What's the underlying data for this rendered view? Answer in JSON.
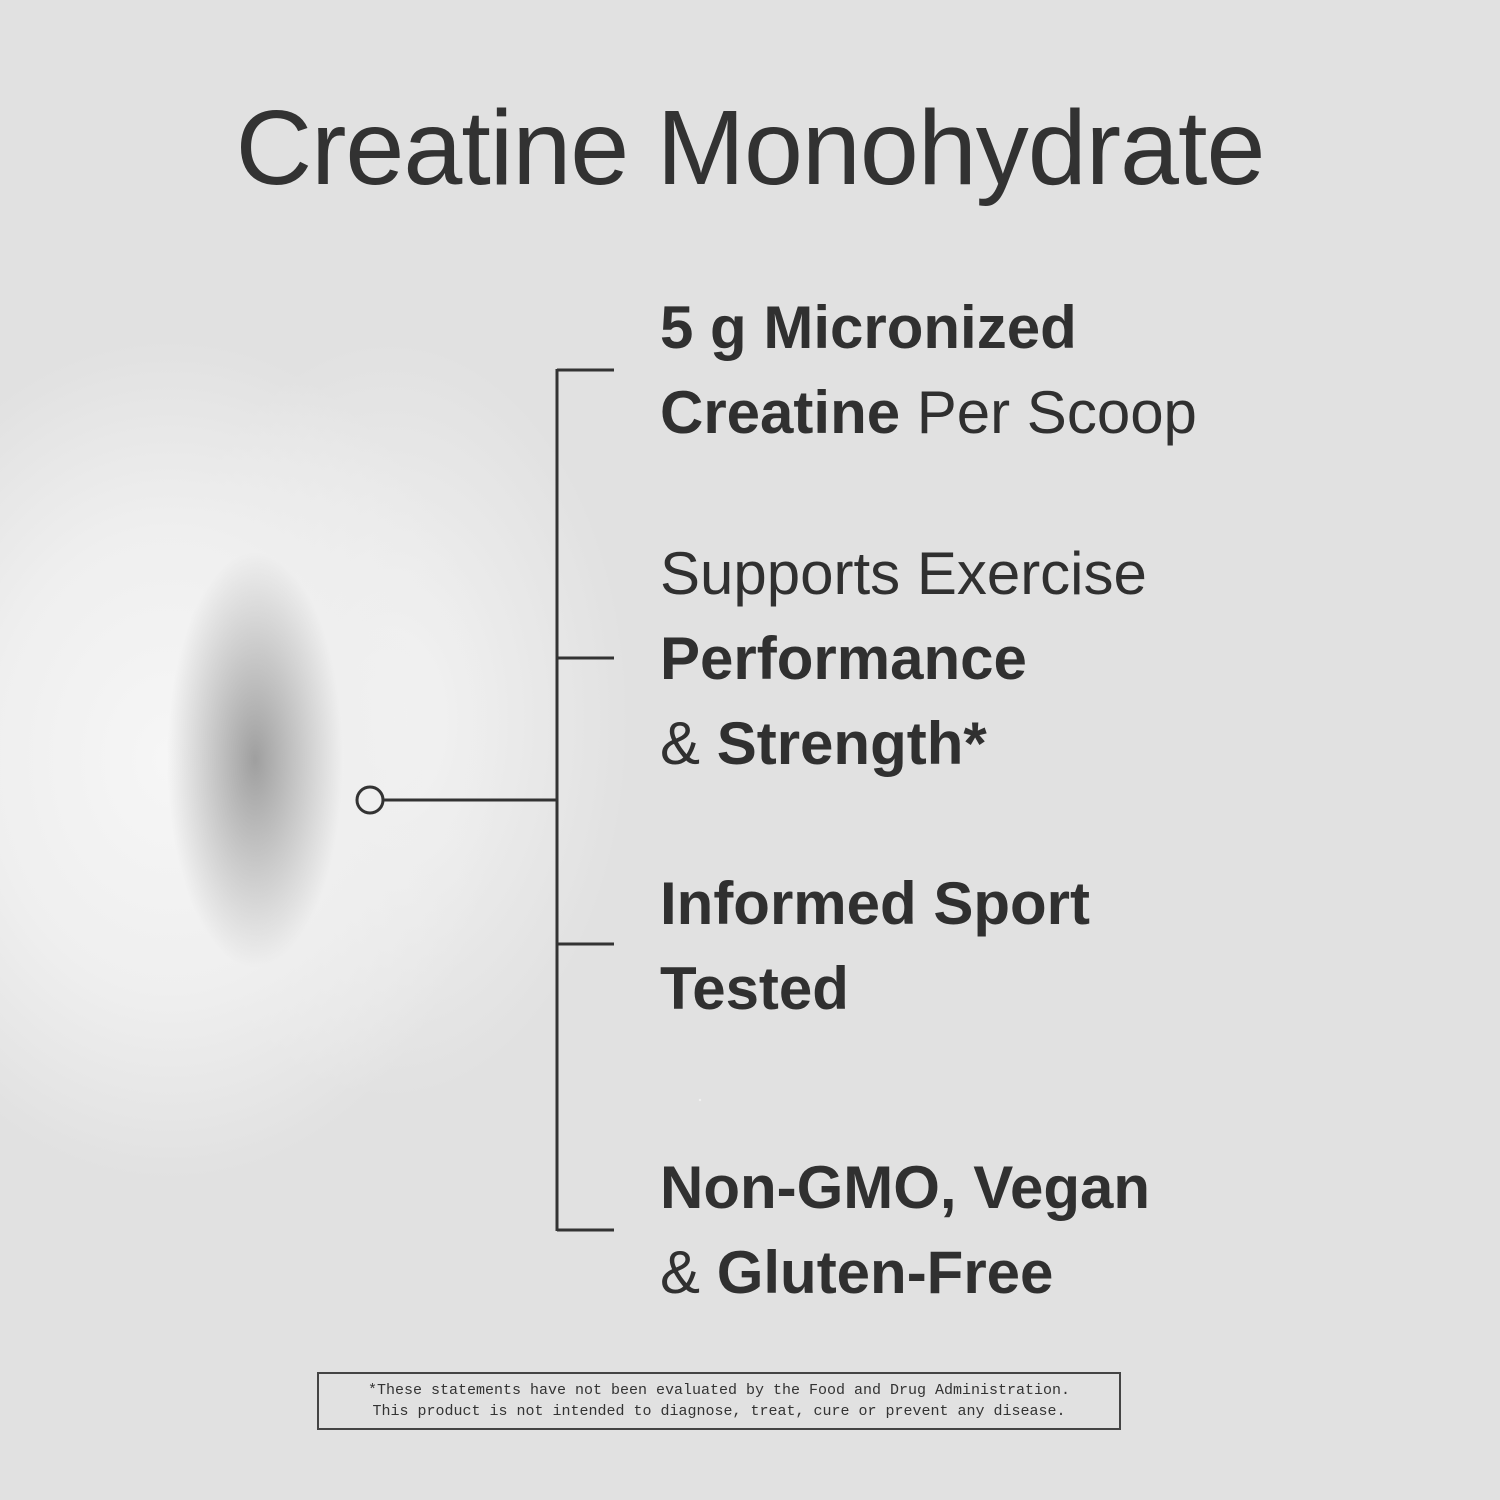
{
  "title": "Creatine Monohydrate",
  "features": [
    {
      "lines": [
        [
          {
            "text": "5 g Micronized",
            "bold": true
          }
        ],
        [
          {
            "text": "Creatine",
            "bold": true
          },
          {
            "text": " Per Scoop",
            "bold": false
          }
        ]
      ]
    },
    {
      "lines": [
        [
          {
            "text": "Supports Exercise",
            "bold": false
          }
        ],
        [
          {
            "text": "Performance",
            "bold": true
          }
        ],
        [
          {
            "text": "& ",
            "bold": false
          },
          {
            "text": "Strength*",
            "bold": true
          }
        ]
      ]
    },
    {
      "lines": [
        [
          {
            "text": "Informed Sport",
            "bold": true
          }
        ],
        [
          {
            "text": "Tested",
            "bold": true
          }
        ]
      ]
    },
    {
      "lines": [
        [
          {
            "text": "Non-GMO, Vegan",
            "bold": true
          }
        ],
        [
          {
            "text": "& ",
            "bold": false
          },
          {
            "text": "Gluten-Free",
            "bold": true
          }
        ]
      ]
    }
  ],
  "disclaimer": {
    "line1": "*These statements have not been evaluated by the Food and Drug Administration.",
    "line2": "This product is not intended to diagnose, treat, cure or prevent any disease."
  },
  "colors": {
    "background": "#e1e1e1",
    "text": "#333333"
  }
}
